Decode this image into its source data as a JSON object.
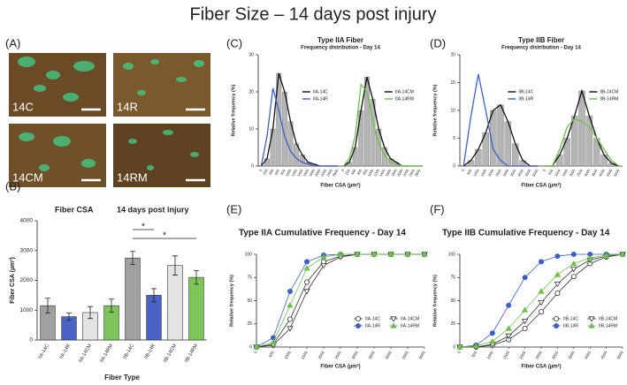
{
  "title": "Fiber Size – 14 days post injury",
  "images": {
    "label": "(A)",
    "labels": [
      "14C",
      "14R",
      "14CM",
      "14RM"
    ]
  },
  "chart_data": [
    {
      "type": "bar",
      "label": "(B)",
      "title": "Fiber CSA",
      "subtitle": "14 days post injury",
      "ylabel": "Fiber CSA (µm²)",
      "xlabel": "Fiber Type",
      "categories": [
        "IIA-14C",
        "IIA-14R",
        "IIA-14CM",
        "IIA-14RM",
        "IIB-14C",
        "IIB-14R",
        "IIB-14CM",
        "IIB-14RM"
      ],
      "values": [
        1150,
        780,
        920,
        1150,
        2750,
        1500,
        2500,
        2100
      ],
      "errors": [
        250,
        120,
        200,
        220,
        220,
        220,
        320,
        230
      ],
      "colors": [
        "#a0a0a0",
        "#4a63c4",
        "#e4e4e4",
        "#7dc45a",
        "#a0a0a0",
        "#4a63c4",
        "#e4e4e4",
        "#7dc45a"
      ],
      "ylim": [
        0,
        4000
      ],
      "yticks": [
        0,
        1000,
        2000,
        3000,
        4000
      ],
      "significance": [
        {
          "label": "*",
          "between": [
            "IIB-14C",
            "IIB-14R"
          ]
        },
        {
          "label": "*",
          "between": [
            "IIB-14C",
            "IIB-14RM"
          ]
        }
      ]
    },
    {
      "type": "line",
      "label": "(C)",
      "title": "Type IIA Fiber",
      "subtitle": "Frequency distribution - Day 14",
      "ylabel": "Relative frequency (%)",
      "xlabel": "Fiber CSA (µm²)",
      "categories": [
        "0",
        "200",
        "400",
        "600",
        "800",
        "1000",
        "1200",
        "1400",
        "1600",
        "1800",
        "2000",
        "2200",
        "2400",
        "2600",
        "0",
        "200",
        "400",
        "600",
        "800",
        "1000",
        "1200",
        "1400",
        "1600",
        "1800",
        "2000",
        "2200",
        "2400",
        "2600"
      ],
      "series": [
        {
          "name": "IIA-14C",
          "color": "#111111",
          "bars": true,
          "values": [
            0,
            2,
            10,
            25,
            20,
            12,
            6,
            3,
            1,
            0.5,
            0,
            0,
            0,
            0,
            null,
            null,
            null,
            null,
            null,
            null,
            null,
            null,
            null,
            null,
            null,
            null,
            null,
            null
          ]
        },
        {
          "name": "IIA-14R",
          "color": "#3d5fc8",
          "values": [
            0,
            8,
            21,
            15,
            8,
            4,
            2,
            1,
            0.5,
            0,
            0,
            0,
            0,
            0,
            null,
            null,
            null,
            null,
            null,
            null,
            null,
            null,
            null,
            null,
            null,
            null,
            null,
            null
          ]
        },
        {
          "name": "IIA-14CM",
          "color": "#111111",
          "bars": true,
          "values": [
            null,
            null,
            null,
            null,
            null,
            null,
            null,
            null,
            null,
            null,
            null,
            null,
            null,
            null,
            0,
            1,
            5,
            15,
            24,
            18,
            10,
            5,
            2,
            1,
            0,
            0,
            0,
            0
          ]
        },
        {
          "name": "IIA-14RM",
          "color": "#6cc04a",
          "values": [
            null,
            null,
            null,
            null,
            null,
            null,
            null,
            null,
            null,
            null,
            null,
            null,
            null,
            null,
            0,
            2,
            8,
            22,
            20,
            12,
            6,
            3,
            1,
            0.5,
            0,
            0,
            0,
            0
          ]
        }
      ],
      "ylim": [
        0,
        30
      ],
      "yticks": [
        0,
        10,
        20,
        30
      ]
    },
    {
      "type": "line",
      "label": "(D)",
      "title": "Type IIB Fiber",
      "subtitle": "Frequency distribution - Day 14",
      "ylabel": "Relative frequency (%)",
      "xlabel": "Fiber CSA (µm²)",
      "categories": [
        "0",
        "500",
        "1000",
        "1500",
        "2000",
        "2500",
        "3000",
        "3500",
        "4000",
        "4500",
        "5000",
        "0",
        "500",
        "1000",
        "1500",
        "2000",
        "2500",
        "3000",
        "3500",
        "4000",
        "4500",
        "5000"
      ],
      "series": [
        {
          "name": "IIB-14C",
          "color": "#111111",
          "bars": true,
          "values": [
            0,
            1,
            3,
            6,
            10,
            11,
            8,
            4,
            1,
            0,
            0,
            null,
            null,
            null,
            null,
            null,
            null,
            null,
            null,
            null,
            null,
            null
          ]
        },
        {
          "name": "IIB-14R",
          "color": "#3d5fc8",
          "values": [
            0,
            9,
            16.5,
            10,
            3,
            1,
            0,
            0,
            0,
            0,
            0,
            null,
            null,
            null,
            null,
            null,
            null,
            null,
            null,
            null,
            null,
            null
          ]
        },
        {
          "name": "IIB-14CM",
          "color": "#111111",
          "bars": true,
          "values": [
            null,
            null,
            null,
            null,
            null,
            null,
            null,
            null,
            null,
            null,
            null,
            0,
            0,
            2,
            5,
            9,
            13.5,
            9,
            5,
            2,
            0.5,
            0
          ]
        },
        {
          "name": "IIB-14RM",
          "color": "#6cc04a",
          "values": [
            null,
            null,
            null,
            null,
            null,
            null,
            null,
            null,
            null,
            null,
            null,
            0,
            0,
            3,
            7,
            8.5,
            8,
            7,
            5,
            3,
            1,
            0
          ]
        }
      ],
      "ylim": [
        0,
        20
      ],
      "yticks": [
        0,
        5,
        10,
        15,
        20
      ]
    },
    {
      "type": "line",
      "label": "(E)",
      "title": "Type IIA Cumulative Frequency - Day 14",
      "ylabel": "Relative frequency (%)",
      "xlabel": "Fiber CSA (µm²)",
      "x": [
        0,
        500,
        1000,
        1500,
        2000,
        2500,
        3000,
        3500,
        4000,
        4500,
        5000
      ],
      "series": [
        {
          "name": "IIA-14C",
          "color": "#333333",
          "marker": "circle-open",
          "values": [
            0,
            3,
            30,
            70,
            92,
            98,
            100,
            100,
            100,
            100,
            100
          ]
        },
        {
          "name": "IIA-14R",
          "color": "#3d5fc8",
          "marker": "circle",
          "values": [
            0,
            10,
            60,
            92,
            99,
            100,
            100,
            100,
            100,
            100,
            100
          ]
        },
        {
          "name": "IIA-14CM",
          "color": "#333333",
          "marker": "triangle-open",
          "values": [
            0,
            2,
            20,
            60,
            88,
            97,
            100,
            100,
            100,
            100,
            100
          ]
        },
        {
          "name": "IIA-14RM",
          "color": "#6cc04a",
          "marker": "triangle",
          "values": [
            0,
            5,
            45,
            85,
            97,
            100,
            100,
            100,
            100,
            100,
            100
          ]
        }
      ],
      "xlim": [
        0,
        5000
      ],
      "xticks": [
        0,
        500,
        1000,
        1500,
        2000,
        2500,
        3000,
        3500,
        4000,
        4500,
        5000
      ],
      "ylim": [
        0,
        100
      ],
      "yticks": [
        0,
        25,
        50,
        75,
        100
      ],
      "legend": "lower-right"
    },
    {
      "type": "line",
      "label": "(F)",
      "title": "Type IIB Cumulative Frequency - Day 14",
      "ylabel": "Relative frequency (%)",
      "xlabel": "Fiber CSA (µm²)",
      "x": [
        0,
        500,
        1000,
        1500,
        2000,
        2500,
        3000,
        3500,
        4000,
        4500,
        5000
      ],
      "series": [
        {
          "name": "IIB-14C",
          "color": "#333333",
          "marker": "circle-open",
          "values": [
            0,
            0,
            2,
            8,
            20,
            38,
            58,
            76,
            90,
            97,
            100
          ]
        },
        {
          "name": "IIB-14R",
          "color": "#3d5fc8",
          "marker": "circle",
          "values": [
            0,
            2,
            15,
            45,
            75,
            92,
            98,
            100,
            100,
            100,
            100
          ]
        },
        {
          "name": "IIB-14CM",
          "color": "#333333",
          "marker": "triangle-open",
          "values": [
            0,
            0,
            3,
            12,
            28,
            48,
            68,
            84,
            94,
            98,
            100
          ]
        },
        {
          "name": "IIB-14RM",
          "color": "#6cc04a",
          "marker": "triangle",
          "values": [
            0,
            1,
            6,
            20,
            40,
            60,
            78,
            90,
            96,
            99,
            100
          ]
        }
      ],
      "xlim": [
        0,
        5000
      ],
      "xticks": [
        0,
        500,
        1000,
        1500,
        2000,
        2500,
        3000,
        3500,
        4000,
        4500,
        5000
      ],
      "ylim": [
        0,
        100
      ],
      "yticks": [
        0,
        25,
        50,
        75,
        100
      ],
      "legend": "lower-right"
    }
  ]
}
